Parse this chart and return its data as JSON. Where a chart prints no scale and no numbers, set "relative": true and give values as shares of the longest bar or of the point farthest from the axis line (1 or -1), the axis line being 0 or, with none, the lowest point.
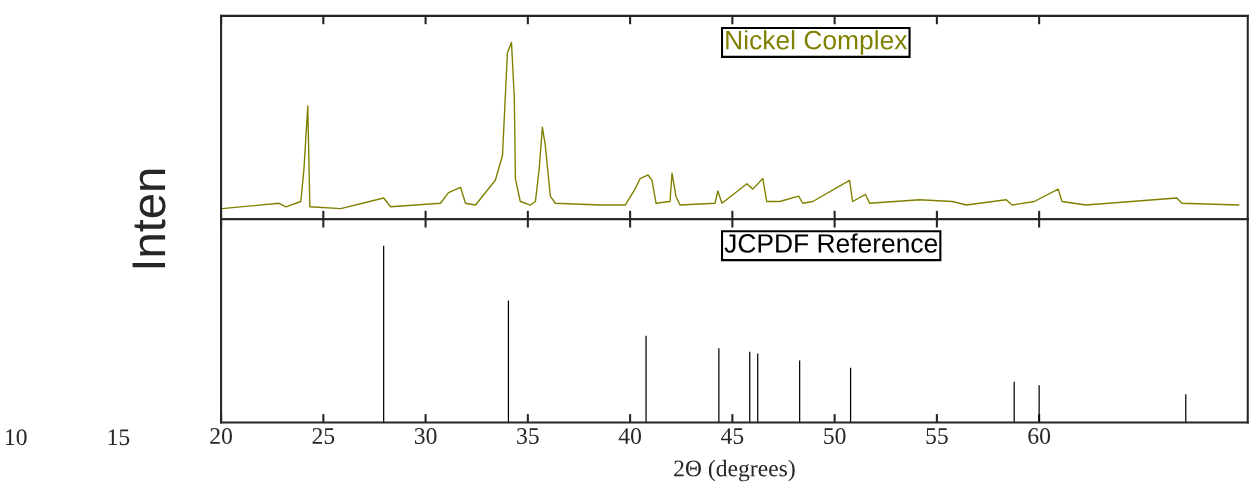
{
  "chart_data": [
    {
      "type": "line",
      "ylabel": "Inten",
      "relative": true,
      "tick_labels": false,
      "xlim": [
        20,
        70.2
      ],
      "xticks": [
        20,
        25,
        30,
        35,
        40,
        45,
        50,
        55,
        60
      ],
      "series": [
        {
          "name": "Nickel Complex",
          "color": "#808000",
          "x": [
            20.05,
            22.83,
            23.17,
            23.9,
            24.05,
            24.24,
            24.34,
            25.85,
            27.95,
            28.29,
            30.73,
            31.12,
            31.71,
            31.95,
            32.44,
            33.41,
            33.76,
            34.0,
            34.2,
            34.34,
            34.39,
            34.63,
            35.12,
            35.37,
            35.56,
            35.71,
            35.85,
            36.1,
            36.34,
            38.54,
            39.76,
            40.24,
            40.49,
            40.88,
            41.07,
            41.27,
            41.95,
            42.05,
            42.24,
            42.44,
            44.15,
            44.29,
            44.49,
            45.71,
            46.0,
            46.49,
            46.68,
            47.32,
            48.24,
            48.44,
            48.93,
            50.73,
            50.88,
            51.51,
            51.71,
            54.15,
            55.76,
            56.44,
            58.39,
            58.68,
            59.76,
            60.93,
            61.12,
            62.29,
            66.73,
            66.98,
            69.76
          ],
          "values": [
            0.06,
            0.09,
            0.07,
            0.1,
            0.28,
            0.64,
            0.07,
            0.06,
            0.12,
            0.07,
            0.09,
            0.15,
            0.18,
            0.09,
            0.08,
            0.22,
            0.36,
            0.94,
            1.0,
            0.68,
            0.23,
            0.1,
            0.08,
            0.1,
            0.29,
            0.52,
            0.42,
            0.13,
            0.09,
            0.08,
            0.08,
            0.17,
            0.23,
            0.25,
            0.22,
            0.09,
            0.1,
            0.26,
            0.13,
            0.08,
            0.09,
            0.16,
            0.09,
            0.2,
            0.17,
            0.23,
            0.1,
            0.1,
            0.13,
            0.09,
            0.1,
            0.22,
            0.1,
            0.14,
            0.09,
            0.11,
            0.1,
            0.08,
            0.11,
            0.08,
            0.1,
            0.17,
            0.1,
            0.08,
            0.12,
            0.09,
            0.08
          ]
        }
      ]
    },
    {
      "type": "bar",
      "xlabel": "2Θ (degrees)",
      "relative": true,
      "tick_labels": "x",
      "xlim": [
        20,
        70.2
      ],
      "xticks": [
        20,
        25,
        30,
        35,
        40,
        45,
        50,
        55,
        60
      ],
      "annotations": [
        "10",
        "15"
      ],
      "series": [
        {
          "name": "JCPDF Reference",
          "color": "#000000",
          "x": [
            27.95,
            34.05,
            40.78,
            44.34,
            45.85,
            46.24,
            48.29,
            50.78,
            58.78,
            60.0,
            67.17
          ],
          "values": [
            1.0,
            0.69,
            0.49,
            0.42,
            0.4,
            0.39,
            0.35,
            0.31,
            0.23,
            0.21,
            0.16
          ]
        }
      ]
    }
  ]
}
